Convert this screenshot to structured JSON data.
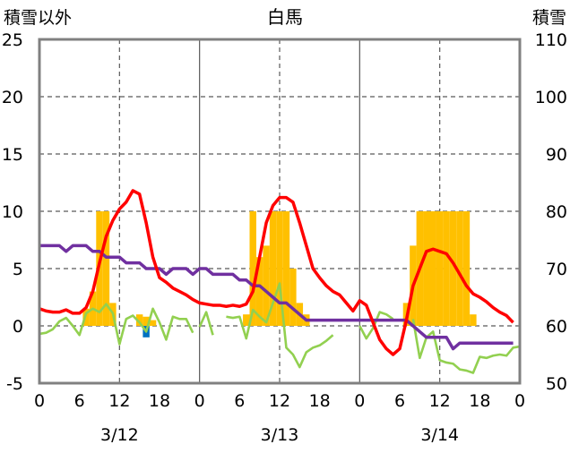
{
  "chart_data": {
    "type": "line",
    "title": "白馬",
    "ylabel_left": "積雪以外",
    "ylabel_right": "積雪",
    "ylim_left": [
      -5,
      25
    ],
    "ylim_right": [
      50,
      110
    ],
    "yticks_left": [
      -5,
      0,
      5,
      10,
      15,
      20,
      25
    ],
    "yticks_right": [
      50,
      60,
      70,
      80,
      90,
      100,
      110
    ],
    "xlim_hours": [
      0,
      72
    ],
    "xtick_labels": [
      "0",
      "6",
      "12",
      "18",
      "0",
      "6",
      "12",
      "18",
      "0",
      "6",
      "12",
      "18",
      "0"
    ],
    "date_labels": [
      "3/12",
      "3/13",
      "3/14"
    ],
    "grid": true,
    "colors": {
      "temperature": "#ff0000",
      "snow_depth": "#7030a0",
      "precipitation": "#ffc000",
      "negative_bar": "#0070c0",
      "green_line": "#92d050",
      "grid": "#595959",
      "frame": "#808080"
    },
    "series": [
      {
        "key": "temperature",
        "axis": "left",
        "values": [
          [
            0,
            1.5
          ],
          [
            1,
            1.3
          ],
          [
            2,
            1.2
          ],
          [
            3,
            1.2
          ],
          [
            4,
            1.4
          ],
          [
            5,
            1.1
          ],
          [
            6,
            1.1
          ],
          [
            7,
            1.6
          ],
          [
            8,
            3.0
          ],
          [
            9,
            5.5
          ],
          [
            10,
            7.8
          ],
          [
            11,
            9.2
          ],
          [
            12,
            10.2
          ],
          [
            13,
            10.8
          ],
          [
            14,
            11.8
          ],
          [
            15,
            11.5
          ],
          [
            16,
            9.0
          ],
          [
            17,
            6.0
          ],
          [
            18,
            4.2
          ],
          [
            19,
            3.8
          ],
          [
            20,
            3.3
          ],
          [
            21,
            3.0
          ],
          [
            22,
            2.7
          ],
          [
            23,
            2.3
          ],
          [
            24,
            2.0
          ],
          [
            25,
            1.9
          ],
          [
            26,
            1.8
          ],
          [
            27,
            1.8
          ],
          [
            28,
            1.7
          ],
          [
            29,
            1.8
          ],
          [
            30,
            1.7
          ],
          [
            31,
            1.9
          ],
          [
            32,
            3.0
          ],
          [
            33,
            6.0
          ],
          [
            34,
            9.0
          ],
          [
            35,
            10.5
          ],
          [
            36,
            11.2
          ],
          [
            37,
            11.2
          ],
          [
            38,
            10.8
          ],
          [
            39,
            9.0
          ],
          [
            40,
            7.0
          ],
          [
            41,
            5.0
          ],
          [
            42,
            4.2
          ],
          [
            43,
            3.5
          ],
          [
            44,
            3.0
          ],
          [
            45,
            2.7
          ],
          [
            46,
            2.0
          ],
          [
            47,
            1.3
          ],
          [
            48,
            2.2
          ],
          [
            49,
            1.8
          ],
          [
            50,
            0.3
          ],
          [
            51,
            -1.2
          ],
          [
            52,
            -2.0
          ],
          [
            53,
            -2.5
          ],
          [
            54,
            -2.0
          ],
          [
            55,
            0.5
          ],
          [
            56,
            3.5
          ],
          [
            57,
            5.0
          ],
          [
            58,
            6.5
          ],
          [
            59,
            6.7
          ],
          [
            60,
            6.5
          ],
          [
            61,
            6.3
          ],
          [
            62,
            5.5
          ],
          [
            63,
            4.5
          ],
          [
            64,
            3.5
          ],
          [
            65,
            2.8
          ],
          [
            66,
            2.5
          ],
          [
            67,
            2.1
          ],
          [
            68,
            1.6
          ],
          [
            69,
            1.2
          ],
          [
            70,
            0.9
          ],
          [
            71,
            0.3
          ]
        ]
      },
      {
        "key": "snow_depth",
        "axis": "right",
        "values": [
          [
            0,
            74
          ],
          [
            1,
            74
          ],
          [
            2,
            74
          ],
          [
            3,
            74
          ],
          [
            4,
            73
          ],
          [
            5,
            74
          ],
          [
            6,
            74
          ],
          [
            7,
            74
          ],
          [
            8,
            73
          ],
          [
            9,
            73
          ],
          [
            10,
            72
          ],
          [
            11,
            72
          ],
          [
            12,
            72
          ],
          [
            13,
            71
          ],
          [
            14,
            71
          ],
          [
            15,
            71
          ],
          [
            16,
            70
          ],
          [
            17,
            70
          ],
          [
            18,
            70
          ],
          [
            19,
            69
          ],
          [
            20,
            70
          ],
          [
            21,
            70
          ],
          [
            22,
            70
          ],
          [
            23,
            69
          ],
          [
            24,
            70
          ],
          [
            25,
            70
          ],
          [
            26,
            69
          ],
          [
            27,
            69
          ],
          [
            28,
            69
          ],
          [
            29,
            69
          ],
          [
            30,
            68
          ],
          [
            31,
            68
          ],
          [
            32,
            67
          ],
          [
            33,
            67
          ],
          [
            34,
            66
          ],
          [
            35,
            65
          ],
          [
            36,
            64
          ],
          [
            37,
            64
          ],
          [
            38,
            63
          ],
          [
            39,
            62
          ],
          [
            40,
            61
          ],
          [
            41,
            61
          ],
          [
            42,
            61
          ],
          [
            43,
            61
          ],
          [
            44,
            61
          ],
          [
            45,
            61
          ],
          [
            46,
            61
          ],
          [
            47,
            61
          ],
          [
            48,
            61
          ],
          [
            49,
            61
          ],
          [
            50,
            61
          ],
          [
            51,
            61
          ],
          [
            52,
            61
          ],
          [
            53,
            61
          ],
          [
            54,
            61
          ],
          [
            55,
            61
          ],
          [
            56,
            60
          ],
          [
            57,
            59
          ],
          [
            58,
            58
          ],
          [
            59,
            58
          ],
          [
            60,
            58
          ],
          [
            61,
            58
          ],
          [
            62,
            56
          ],
          [
            63,
            57
          ],
          [
            64,
            57
          ],
          [
            65,
            57
          ],
          [
            66,
            57
          ],
          [
            67,
            57
          ],
          [
            68,
            57
          ],
          [
            69,
            57
          ],
          [
            70,
            57
          ],
          [
            71,
            57
          ]
        ]
      },
      {
        "key": "green_line",
        "axis": "left",
        "segments": [
          [
            [
              0,
              -0.7
            ],
            [
              1,
              -0.6
            ],
            [
              2,
              -0.3
            ],
            [
              3,
              0.4
            ],
            [
              4,
              0.7
            ],
            [
              5,
              0.0
            ],
            [
              6,
              -0.8
            ],
            [
              7,
              1.1
            ],
            [
              8,
              1.5
            ],
            [
              9,
              1.2
            ],
            [
              10,
              1.9
            ],
            [
              11,
              1.1
            ],
            [
              12,
              -1.6
            ],
            [
              13,
              0.6
            ],
            [
              14,
              0.9
            ],
            [
              15,
              0.3
            ],
            [
              16,
              -0.5
            ],
            [
              17,
              1.5
            ],
            [
              18,
              0.3
            ],
            [
              19,
              -1.2
            ],
            [
              20,
              0.8
            ],
            [
              21,
              0.6
            ],
            [
              22,
              0.6
            ],
            [
              23,
              -0.6
            ]
          ],
          [
            [
              24,
              -0.1
            ],
            [
              25,
              1.2
            ],
            [
              26,
              -0.8
            ]
          ],
          [
            [
              28,
              0.8
            ],
            [
              29,
              0.7
            ],
            [
              30,
              0.8
            ],
            [
              31,
              -1.1
            ],
            [
              32,
              1.4
            ],
            [
              33,
              0.8
            ],
            [
              34,
              0.3
            ],
            [
              35,
              2.0
            ],
            [
              36,
              3.7
            ],
            [
              37,
              -1.9
            ],
            [
              38,
              -2.5
            ],
            [
              39,
              -3.6
            ],
            [
              40,
              -2.3
            ],
            [
              41,
              -1.9
            ],
            [
              42,
              -1.7
            ],
            [
              43,
              -1.3
            ],
            [
              44,
              -0.8
            ]
          ],
          [
            [
              48,
              0.0
            ],
            [
              49,
              -1.1
            ],
            [
              50,
              -0.2
            ],
            [
              51,
              1.2
            ],
            [
              52,
              1.0
            ],
            [
              53,
              0.6
            ]
          ],
          [
            [
              56,
              0.6
            ],
            [
              57,
              -2.8
            ],
            [
              58,
              -1.0
            ],
            [
              59,
              -0.5
            ],
            [
              60,
              -3.0
            ],
            [
              61,
              -3.2
            ],
            [
              62,
              -3.3
            ],
            [
              63,
              -3.8
            ],
            [
              64,
              -3.9
            ],
            [
              65,
              -4.1
            ],
            [
              66,
              -2.7
            ],
            [
              67,
              -2.8
            ],
            [
              68,
              -2.6
            ],
            [
              69,
              -2.5
            ],
            [
              70,
              -2.6
            ],
            [
              71,
              -1.9
            ],
            [
              72,
              -1.8
            ]
          ]
        ]
      },
      {
        "key": "precipitation",
        "axis": "left",
        "type": "bar",
        "values": [
          [
            7,
            1.5
          ],
          [
            8,
            3.0
          ],
          [
            9,
            10.0
          ],
          [
            10,
            10.0
          ],
          [
            11,
            2.0
          ],
          [
            15,
            1.0
          ],
          [
            16,
            0.8
          ],
          [
            17,
            0.5
          ],
          [
            31,
            1.0
          ],
          [
            32,
            10.0
          ],
          [
            33,
            6.0
          ],
          [
            34,
            7.0
          ],
          [
            35,
            10.0
          ],
          [
            36,
            10.0
          ],
          [
            37,
            10.0
          ],
          [
            38,
            5.0
          ],
          [
            39,
            2.0
          ],
          [
            40,
            1.0
          ],
          [
            55,
            2.0
          ],
          [
            56,
            7.0
          ],
          [
            57,
            10.0
          ],
          [
            58,
            10.0
          ],
          [
            59,
            10.0
          ],
          [
            60,
            10.0
          ],
          [
            61,
            10.0
          ],
          [
            62,
            10.0
          ],
          [
            63,
            10.0
          ],
          [
            64,
            10.0
          ],
          [
            65,
            1.0
          ]
        ]
      },
      {
        "key": "negative_bar",
        "axis": "left",
        "type": "bar",
        "values": [
          [
            16,
            -1.0
          ]
        ]
      }
    ]
  }
}
